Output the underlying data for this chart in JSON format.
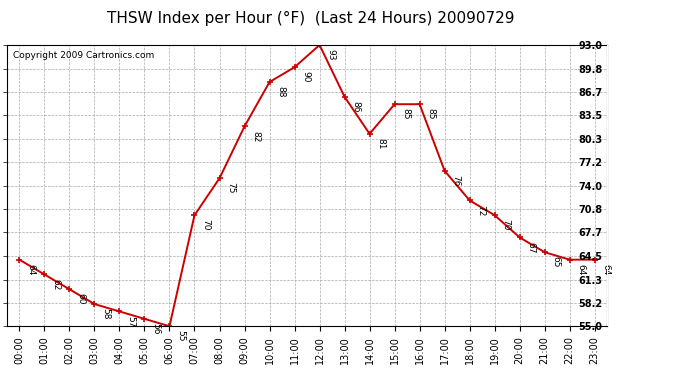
{
  "title": "THSW Index per Hour (°F)  (Last 24 Hours) 20090729",
  "copyright": "Copyright 2009 Cartronics.com",
  "hours": [
    "00:00",
    "01:00",
    "02:00",
    "03:00",
    "04:00",
    "05:00",
    "06:00",
    "07:00",
    "08:00",
    "09:00",
    "10:00",
    "11:00",
    "12:00",
    "13:00",
    "14:00",
    "15:00",
    "16:00",
    "17:00",
    "18:00",
    "19:00",
    "20:00",
    "21:00",
    "22:00",
    "23:00"
  ],
  "values": [
    64,
    62,
    60,
    58,
    57,
    56,
    55,
    70,
    75,
    82,
    88,
    90,
    93,
    86,
    81,
    85,
    85,
    76,
    72,
    70,
    67,
    65,
    64,
    64
  ],
  "ylim_min": 55.0,
  "ylim_max": 93.0,
  "yticks": [
    55.0,
    58.2,
    61.3,
    64.5,
    67.7,
    70.8,
    74.0,
    77.2,
    80.3,
    83.5,
    86.7,
    89.8,
    93.0
  ],
  "line_color": "#cc0000",
  "marker": "+",
  "marker_size": 5,
  "marker_linewidth": 1.2,
  "line_width": 1.4,
  "grid_color": "#aaaaaa",
  "grid_style": "--",
  "bg_color": "#ffffff",
  "title_fontsize": 11,
  "label_fontsize": 7,
  "annot_fontsize": 6.5,
  "copyright_fontsize": 6.5,
  "fig_width": 6.9,
  "fig_height": 3.75,
  "dpi": 100
}
